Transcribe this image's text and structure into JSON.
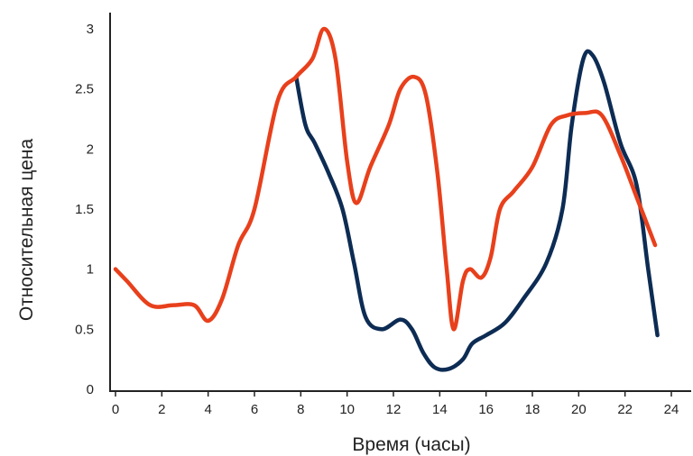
{
  "chart_data": {
    "type": "line",
    "title": "",
    "xlabel": "Время (часы)",
    "ylabel": "Относительная цена",
    "xlim": [
      0,
      24
    ],
    "ylim": [
      0,
      3
    ],
    "grid": false,
    "x_ticks": [
      0,
      2,
      4,
      6,
      8,
      10,
      12,
      14,
      16,
      18,
      20,
      22,
      24
    ],
    "y_ticks": [
      {
        "value": 0,
        "label": "0"
      },
      {
        "value": 0.5,
        "label": "0.5"
      },
      {
        "value": 1,
        "label": "1"
      },
      {
        "value": 1.5,
        "label": "1.5"
      },
      {
        "value": 2,
        "label": "2"
      },
      {
        "value": 2.5,
        "label": "2.5"
      },
      {
        "value": 3,
        "label": "3"
      }
    ],
    "series": [
      {
        "color": "#e8401c",
        "points": [
          [
            0,
            1.0
          ],
          [
            0.5,
            0.9
          ],
          [
            1.5,
            0.7
          ],
          [
            2.5,
            0.7
          ],
          [
            3.4,
            0.7
          ],
          [
            4.0,
            0.57
          ],
          [
            4.6,
            0.75
          ],
          [
            5.3,
            1.2
          ],
          [
            6.0,
            1.5
          ],
          [
            7.0,
            2.4
          ],
          [
            7.8,
            2.6
          ],
          [
            8.5,
            2.75
          ],
          [
            9.0,
            3.0
          ],
          [
            9.5,
            2.75
          ],
          [
            10.0,
            1.9
          ],
          [
            10.4,
            1.55
          ],
          [
            11.0,
            1.85
          ],
          [
            11.8,
            2.2
          ],
          [
            12.3,
            2.5
          ],
          [
            12.9,
            2.6
          ],
          [
            13.4,
            2.45
          ],
          [
            13.9,
            1.8
          ],
          [
            14.3,
            1.0
          ],
          [
            14.6,
            0.5
          ],
          [
            15.0,
            0.9
          ],
          [
            15.3,
            1.0
          ],
          [
            15.8,
            0.93
          ],
          [
            16.2,
            1.1
          ],
          [
            16.6,
            1.5
          ],
          [
            17.2,
            1.65
          ],
          [
            18.0,
            1.85
          ],
          [
            18.8,
            2.2
          ],
          [
            19.5,
            2.28
          ],
          [
            20.3,
            2.3
          ],
          [
            21.0,
            2.28
          ],
          [
            21.8,
            1.95
          ],
          [
            22.5,
            1.6
          ],
          [
            23.3,
            1.2
          ]
        ]
      },
      {
        "color": "#0d2c54",
        "points": [
          [
            7.8,
            2.6
          ],
          [
            8.2,
            2.2
          ],
          [
            8.6,
            2.05
          ],
          [
            9.2,
            1.8
          ],
          [
            9.8,
            1.5
          ],
          [
            10.3,
            1.05
          ],
          [
            10.8,
            0.6
          ],
          [
            11.5,
            0.5
          ],
          [
            12.3,
            0.58
          ],
          [
            12.8,
            0.5
          ],
          [
            13.3,
            0.3
          ],
          [
            13.8,
            0.18
          ],
          [
            14.4,
            0.17
          ],
          [
            15.0,
            0.25
          ],
          [
            15.4,
            0.38
          ],
          [
            16.0,
            0.45
          ],
          [
            16.8,
            0.55
          ],
          [
            17.6,
            0.75
          ],
          [
            18.6,
            1.05
          ],
          [
            19.3,
            1.5
          ],
          [
            19.7,
            2.2
          ],
          [
            20.2,
            2.75
          ],
          [
            20.6,
            2.78
          ],
          [
            21.1,
            2.55
          ],
          [
            21.8,
            2.05
          ],
          [
            22.5,
            1.7
          ],
          [
            23.0,
            1.0
          ],
          [
            23.4,
            0.45
          ]
        ]
      }
    ]
  }
}
